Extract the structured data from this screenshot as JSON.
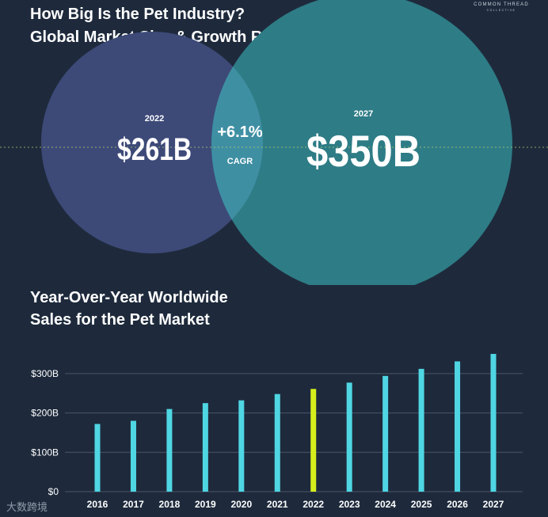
{
  "header": {
    "title_line1": "How Big Is the Pet Industry?",
    "title_line2": "Global Market Size & Growth Rate",
    "brand": "COMMON THREAD",
    "brand_sub": "COLLECTIVE"
  },
  "venn": {
    "left": {
      "year": "2022",
      "value": "$261B",
      "color": "#3d4a78"
    },
    "right": {
      "year": "2027",
      "value": "$350B",
      "color": "#2e7c86"
    },
    "overlap": {
      "rate": "+6.1%",
      "label": "CAGR",
      "color": "#3f8fa3"
    }
  },
  "chart_data": {
    "type": "bar",
    "title_line1": "Year-Over-Year Worldwide",
    "title_line2": "Sales for the Pet Market",
    "categories": [
      "2016",
      "2017",
      "2018",
      "2019",
      "2020",
      "2021",
      "2022",
      "2023",
      "2024",
      "2025",
      "2026",
      "2027"
    ],
    "values": [
      172,
      180,
      210,
      225,
      232,
      248,
      261,
      277,
      294,
      312,
      331,
      350
    ],
    "highlight_index": 6,
    "ylim": [
      0,
      350
    ],
    "yticks": [
      0,
      100,
      200,
      300
    ],
    "ytick_labels": [
      "$0",
      "$100B",
      "$200B",
      "$300B"
    ],
    "bar_color": "#4fd6e3",
    "highlight_color": "#d6ef1c",
    "grid": true
  },
  "watermark": {
    "text": "大数跨境"
  }
}
